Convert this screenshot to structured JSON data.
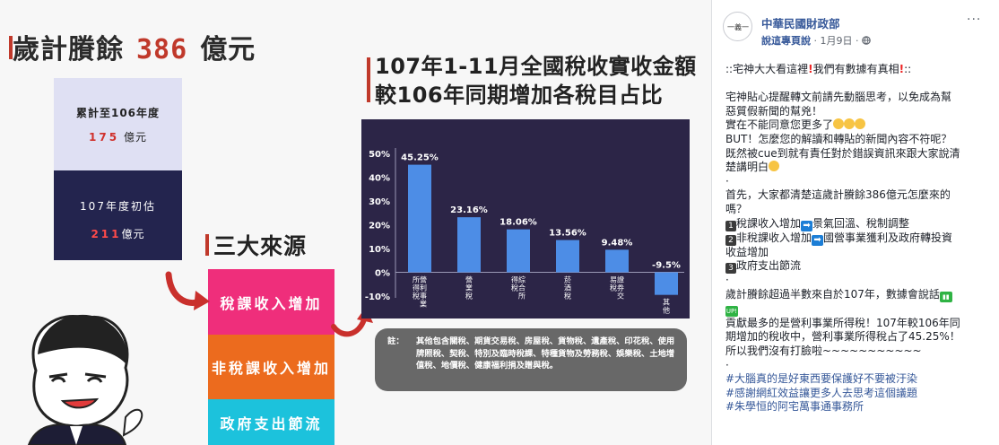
{
  "infographic": {
    "surplus_title_prefix": "歲計賸餘",
    "surplus_value": "386",
    "surplus_title_suffix": "億元",
    "cumulative_label": "累計至106年度",
    "cumulative_value": "175",
    "cumulative_unit": "億元",
    "estimate_label": "107年度初估",
    "estimate_value": "211",
    "estimate_unit": "億元",
    "sources_title": "三大來源",
    "sources": [
      "稅課收入增加",
      "非稅課收入增加",
      "政府支出節流"
    ],
    "colors": {
      "accent": "#c0392b",
      "tax": "#ef2e7b",
      "nontax": "#ec6b1e",
      "gov": "#1cc2dc",
      "chart_bg": "#2c2547",
      "bar": "#4d8de6"
    }
  },
  "chart_data": {
    "type": "bar",
    "title_line1": "107年1-11月全國稅收實收金額",
    "title_line2": "較106年同期增加各稅目占比",
    "categories": [
      "營利事業所得稅",
      "營業稅",
      "綜合所得稅",
      "菸酒稅",
      "證券交易稅",
      "其他"
    ],
    "category_columns": [
      [
        "營",
        "利",
        "事",
        "業",
        "所",
        "得",
        "稅"
      ],
      [
        "營",
        "業",
        "稅"
      ],
      [
        "綜",
        "合",
        "所",
        "得",
        "稅"
      ],
      [
        "菸",
        "酒",
        "稅"
      ],
      [
        "證",
        "券",
        "交",
        "易",
        "稅"
      ],
      [
        "其",
        "他"
      ]
    ],
    "values": [
      45.25,
      23.16,
      18.06,
      13.56,
      9.48,
      -9.5
    ],
    "value_labels": [
      "45.25%",
      "23.16%",
      "18.06%",
      "13.56%",
      "9.48%",
      "-9.5%"
    ],
    "yticks": [
      50,
      40,
      30,
      20,
      10,
      0,
      -10
    ],
    "ytick_labels": [
      "50%",
      "40%",
      "30%",
      "20%",
      "10%",
      "0%",
      "-10%"
    ],
    "ylim": [
      -10,
      50
    ],
    "grid": false
  },
  "note": {
    "label": "註：",
    "text": "其他包含關稅、期貨交易稅、房屋稅、貨物稅、遺產稅、印花稅、使用牌照稅、契稅、特別及臨時稅課、特種貨物及勞務稅、娛樂稅、土地增值稅、地價稅、健康福利捐及贈與稅。"
  },
  "post": {
    "page_name": "中華民國財政部",
    "author": "說這專頁說",
    "separator": "·",
    "date": "1月9日",
    "more": "···",
    "avatar_text": "一義一",
    "icons": {
      "privacy": "globe-icon",
      "more": "more-icon"
    },
    "lines": {
      "l1_a": "::宅神大大看這裡",
      "l1_b": "我們有數據有真相",
      "l1_c": "::",
      "l3": "宅神貼心提醒轉文前請先動腦思考，以免成為幫",
      "l4": "惡質假新聞的幫兇！",
      "l5": "實在不能同意您更多了",
      "l6": "BUT！怎麼您的解讀和轉貼的新聞內容不符呢？",
      "l7": "既然被cue到就有責任對於錯誤資訊來跟大家說清",
      "l8": "楚講明白",
      "l9": "·",
      "l10": "首先，大家都清楚這歲計賸餘386億元怎麼來的",
      "l11": "嗎？",
      "k1_num": "1",
      "k1_a": "稅課收入增加",
      "k1_b": "景氣回溫、稅制調整",
      "k2_num": "2",
      "k2_a": "非稅課收入增加",
      "k2_b": "國營事業獲利及政府轉投資",
      "k2_c": "收益增加",
      "k3_num": "3",
      "k3_a": "政府支出節流",
      "l16": "·",
      "l17": "歲計賸餘超過半數來自於107年，數據會說話",
      "up": "UP!",
      "l19": "貢獻最多的是營利事業所得稅！107年較106年同",
      "l20": "期增加的稅收中，營利事業所得稅占了45.25%！",
      "l21": "所以我們沒有打臉啦~~~~~~~~~~~",
      "l22": "·",
      "arrow": "➡"
    },
    "hashtags": [
      "#大腦真的是好東西要保護好不要被汙染",
      "#感謝網紅效益讓更多人去思考這個議題",
      "#朱學恒的阿宅萬事通事務所"
    ]
  }
}
